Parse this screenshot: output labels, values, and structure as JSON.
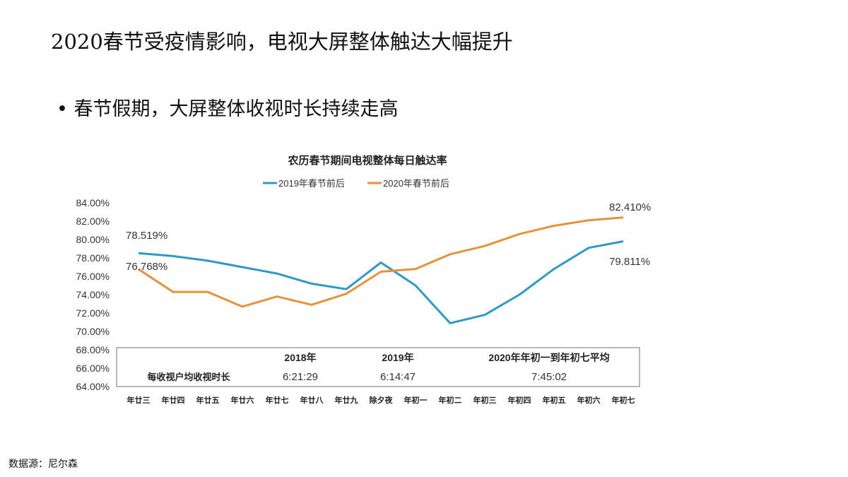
{
  "slide": {
    "title": "2020春节受疫情影响，电视大屏整体触达大幅提升",
    "bullet": "• 春节假期，大屏整体收视时长持续走高",
    "source": "数据源：尼尔森"
  },
  "chart_data": {
    "type": "line",
    "title": "农历春节期间电视整体每日触达率",
    "legend_position": "top",
    "categories": [
      "年廿三",
      "年廿四",
      "年廿五",
      "年廿六",
      "年廿七",
      "年廿八",
      "年廿九",
      "除夕夜",
      "年初一",
      "年初二",
      "年初三",
      "年初四",
      "年初五",
      "年初六",
      "年初七"
    ],
    "ylim": [
      64,
      84
    ],
    "yticks": [
      "84.00%",
      "82.00%",
      "80.00%",
      "78.00%",
      "76.00%",
      "74.00%",
      "72.00%",
      "70.00%",
      "68.00%",
      "66.00%",
      "64.00%"
    ],
    "grid": false,
    "series": [
      {
        "name": "2019年春节前后",
        "color": "#2e9ac4",
        "values": [
          78.519,
          78.2,
          77.7,
          77.0,
          76.3,
          75.2,
          74.6,
          77.5,
          75.0,
          70.9,
          71.8,
          74.0,
          76.8,
          79.1,
          79.811
        ]
      },
      {
        "name": "2020年春节前后",
        "color": "#e8913a",
        "values": [
          76.768,
          74.3,
          74.3,
          72.7,
          73.8,
          72.9,
          74.1,
          76.5,
          76.8,
          78.4,
          79.3,
          80.6,
          81.5,
          82.1,
          82.41
        ]
      }
    ],
    "annotations": {
      "s0_first": "78.519%",
      "s0_last": "79.811%",
      "s1_first": "76.768%",
      "s1_last": "82.410%"
    },
    "table": {
      "headers": [
        "2018年",
        "2019年",
        "2020年年初一到年初七平均"
      ],
      "row_label": "每收视户均收视时长",
      "values": [
        "6:21:29",
        "6:14:47",
        "7:45:02"
      ]
    }
  }
}
